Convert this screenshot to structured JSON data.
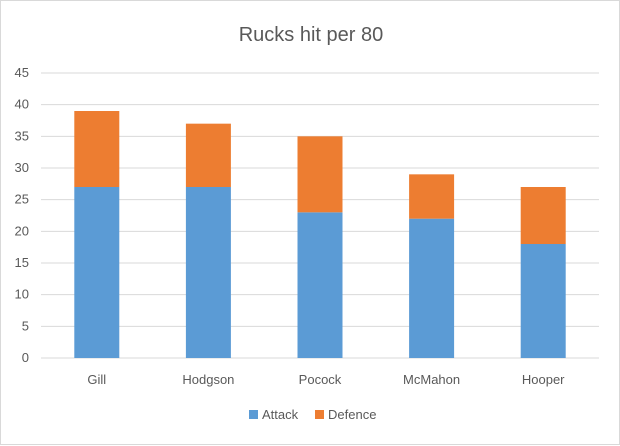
{
  "chart_data": {
    "type": "bar",
    "stacked": true,
    "title": "Rucks hit per 80",
    "xlabel": "",
    "ylabel": "",
    "categories": [
      "Gill",
      "Hodgson",
      "Pocock",
      "McMahon",
      "Hooper"
    ],
    "series": [
      {
        "name": "Attack",
        "color": "#5b9bd5",
        "values": [
          27,
          27,
          23,
          22,
          18
        ]
      },
      {
        "name": "Defence",
        "color": "#ed7d31",
        "values": [
          12,
          10,
          12,
          7,
          9
        ]
      }
    ],
    "ylim": [
      0,
      45
    ],
    "yticks": [
      "0",
      "5",
      "10",
      "15",
      "20",
      "25",
      "30",
      "35",
      "40",
      "45"
    ],
    "grid": true,
    "legend": "bottom"
  }
}
